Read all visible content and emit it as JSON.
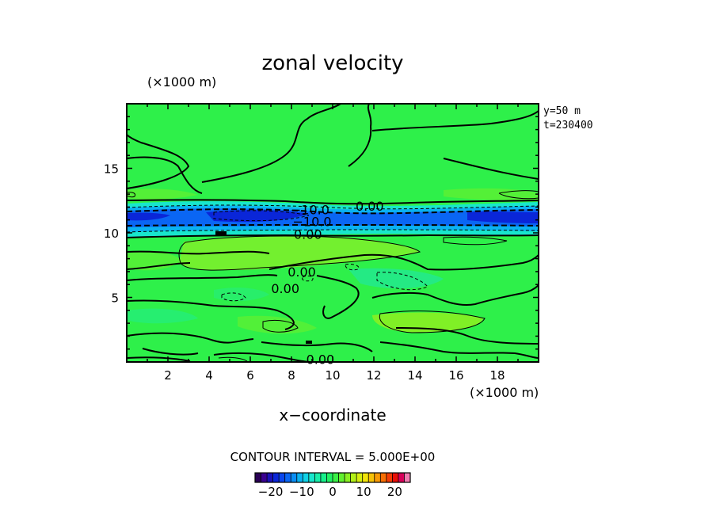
{
  "chart_data": {
    "type": "heatmap",
    "title": "zonal velocity",
    "xlabel": "x−coordinate",
    "x_unit_label": "(×1000 m)",
    "y_unit_label": "(×1000 m)",
    "xlim": [
      0,
      20
    ],
    "ylim": [
      0,
      20
    ],
    "x_ticks": [
      2,
      4,
      6,
      8,
      10,
      12,
      14,
      16,
      18
    ],
    "y_ticks": [
      5,
      10,
      15
    ],
    "annotations": [
      "y=50 m",
      "t=230400"
    ],
    "contour_interval_text": "CONTOUR INTERVAL = 5.000E+00",
    "contour_labels": [
      {
        "text": "0.00",
        "x": 11.8,
        "y": 12.1
      },
      {
        "text": "−10.0",
        "x": 8.9,
        "y": 11.8
      },
      {
        "text": "−10.0",
        "x": 9.0,
        "y": 10.9
      },
      {
        "text": "0.00",
        "x": 8.8,
        "y": 9.9
      },
      {
        "text": "0.00",
        "x": 8.5,
        "y": 7.0
      },
      {
        "text": "0.00",
        "x": 7.7,
        "y": 5.7
      },
      {
        "text": "0.00",
        "x": 9.4,
        "y": 0.2
      }
    ],
    "colorbar": {
      "range": [
        -25,
        25
      ],
      "ticks": [
        "−20",
        "−10",
        "0",
        "10",
        "20"
      ],
      "colors": [
        "#2a0055",
        "#3a0090",
        "#1a10b8",
        "#0a26d8",
        "#0a46ee",
        "#0a66f4",
        "#0a8ef4",
        "#0ab2f0",
        "#10d2e6",
        "#18e6cc",
        "#18eeaa",
        "#16f08a",
        "#20f064",
        "#3af046",
        "#62f030",
        "#8af022",
        "#b2f018",
        "#d6ee10",
        "#f2e40a",
        "#f6c208",
        "#f89a06",
        "#f86e04",
        "#f43c04",
        "#e81008",
        "#d8005a",
        "#f07ab0"
      ]
    },
    "field_description_levels": {
      "jet_center_y": 11.3,
      "jet_min_value": -22,
      "background_value": 2
    }
  }
}
